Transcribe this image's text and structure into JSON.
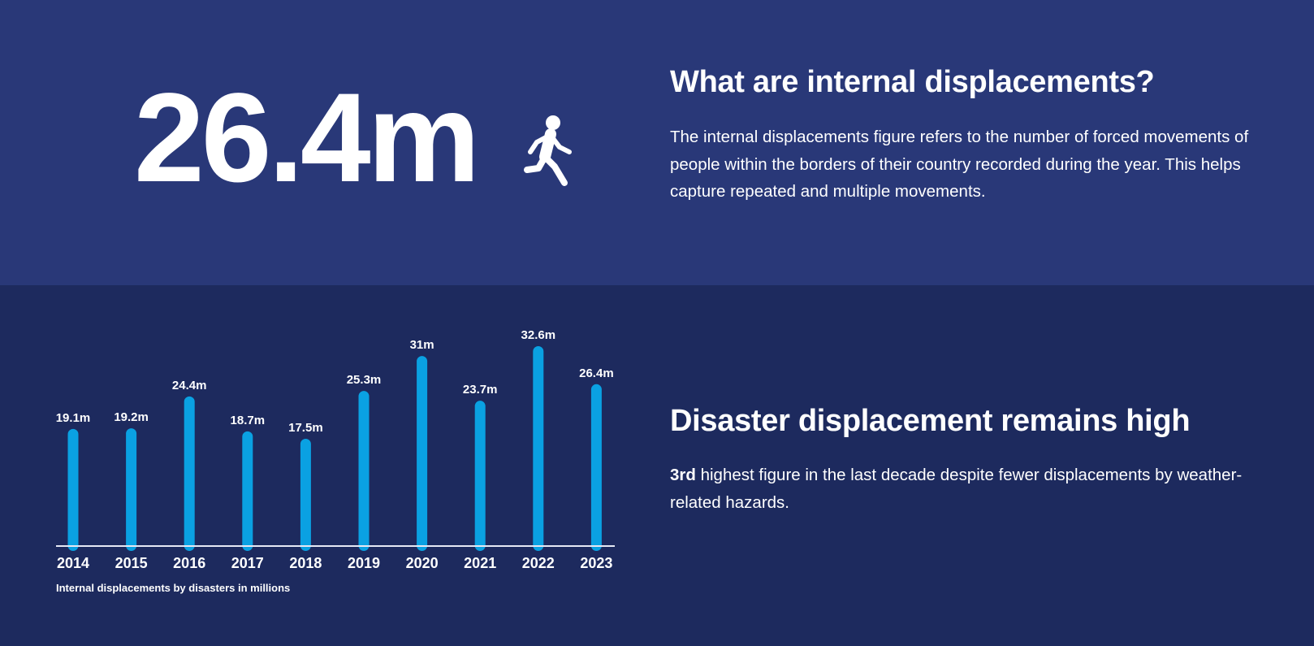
{
  "stat": {
    "value": "26.4m",
    "icon": "running-person-icon"
  },
  "about": {
    "title": "What are internal displacements?",
    "body": "The internal displacements figure refers to the number of forced movements of people within the borders of their country recorded during the year. This helps capture repeated and multiple movements."
  },
  "highlight": {
    "title": "Disaster displacement remains high",
    "body_bold": "3rd",
    "body_rest": " highest figure in the last decade despite fewer displacements by weather-related hazards."
  },
  "colors": {
    "top_bg": "#293878",
    "bottom_bg": "#1d2a5e",
    "bar": "#0aa1e2",
    "text": "#ffffff"
  },
  "chart_data": {
    "type": "bar",
    "caption": "Internal displacements by disasters in millions",
    "categories": [
      "2014",
      "2015",
      "2016",
      "2017",
      "2018",
      "2019",
      "2020",
      "2021",
      "2022",
      "2023"
    ],
    "values": [
      19.1,
      19.2,
      24.4,
      18.7,
      17.5,
      25.3,
      31,
      23.7,
      32.6,
      26.4
    ],
    "labels": [
      "19.1m",
      "19.2m",
      "24.4m",
      "18.7m",
      "17.5m",
      "25.3m",
      "31m",
      "23.7m",
      "32.6m",
      "26.4m"
    ],
    "ylim": [
      0,
      32.6
    ],
    "grid": false,
    "legend": "none"
  }
}
